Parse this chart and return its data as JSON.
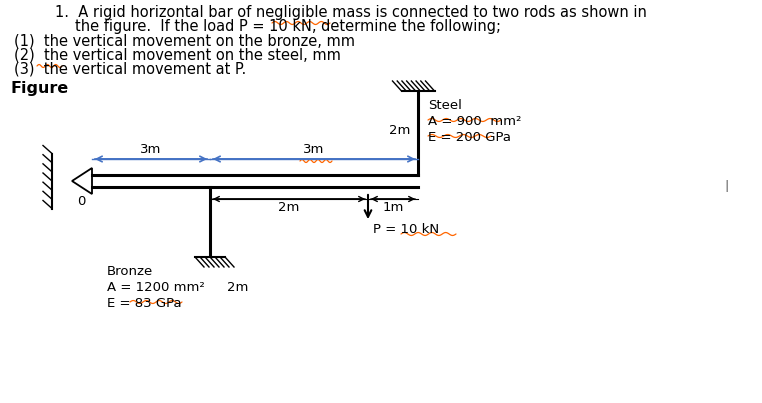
{
  "bg_color": "#ffffff",
  "line_color": "#000000",
  "text_color": "#000000",
  "blue_color": "#4472C4",
  "orange_color": "#FF6600",
  "gray_color": "#888888",
  "figure_label": "Figure",
  "steel_label": "Steel",
  "steel_A": "A = 900  mm²",
  "steel_E": "E = 200 GPa",
  "steel_length": "2m",
  "bronze_label": "Bronze",
  "bronze_A": "A = 1200 mm²",
  "bronze_E": "E = 83 GPa",
  "bronze_length": "2m",
  "dim_3m_left": "3m",
  "dim_3m_right": "3m",
  "dim_2m": "2m",
  "dim_1m": "1m",
  "load_label": "P = 10 kN",
  "fs_title": 10.5,
  "fs_body": 10.5,
  "fs_diagram": 9.5
}
